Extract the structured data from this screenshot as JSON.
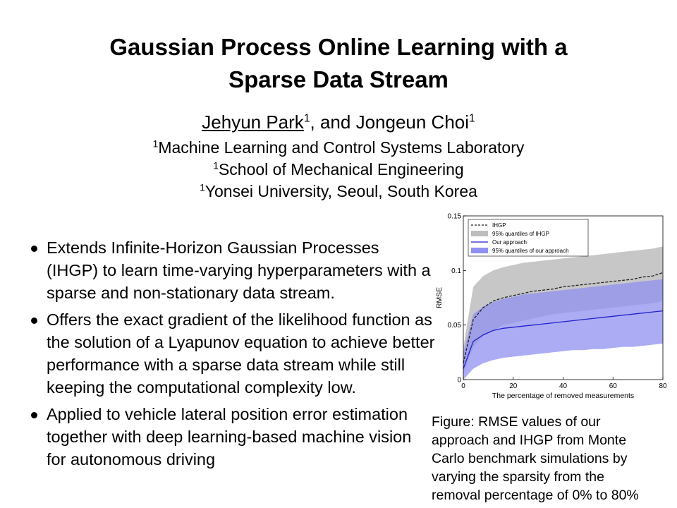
{
  "title": {
    "line1": "Gaussian Process Online Learning with a",
    "line2": "Sparse Data Stream"
  },
  "authors": {
    "author1": "Jehyun Park",
    "author1_sup": "1",
    "separator": ", and ",
    "author2": "Jongeun Choi",
    "author2_sup": "1"
  },
  "affiliations": [
    {
      "sup": "1",
      "text": "Machine Learning and Control Systems Laboratory"
    },
    {
      "sup": "1",
      "text": "School of Mechanical Engineering"
    },
    {
      "sup": "1",
      "text": "Yonsei University, Seoul, South Korea"
    }
  ],
  "bullets": [
    "Extends Infinite-Horizon Gaussian Processes (IHGP)  to learn time-varying hyperparameters with a sparse and non-stationary data stream.",
    "Offers the exact gradient of the likelihood function as the solution of a Lyapunov equation to achieve better performance with a sparse data stream while still keeping the computational complexity low.",
    "Applied to vehicle lateral position error estimation together with deep learning-based machine vision for autonomous driving"
  ],
  "caption_lines": [
    "Figure: RMSE values of our",
    "approach and IHGP from Monte",
    "Carlo benchmark simulations by",
    "varying the sparsity from the",
    "removal percentage of 0% to 80%"
  ],
  "chart_data": {
    "type": "line",
    "xlabel": "The percentage of removed measurements",
    "ylabel": "RMSE",
    "xlim": [
      0,
      80
    ],
    "ylim": [
      0,
      0.15
    ],
    "xticks": [
      "0",
      "20",
      "40",
      "60",
      "80"
    ],
    "yticks": [
      "0",
      "0.05",
      "0.1",
      "0.15"
    ],
    "grid": false,
    "legend_position": "top-left",
    "legend": [
      "IHGP",
      "95% quantiles of IHGP",
      "Our approach",
      "95% quantiles of our approach"
    ],
    "colors": {
      "ihgp": "#222222",
      "ihgp_band": "#bdbdbd",
      "ours": "#2222cc",
      "ours_band": "#9090f0"
    },
    "x": [
      0,
      4,
      8,
      12,
      16,
      20,
      24,
      28,
      32,
      36,
      40,
      44,
      48,
      52,
      56,
      60,
      64,
      68,
      72,
      76,
      80
    ],
    "series": [
      {
        "name": "IHGP",
        "values": [
          0.015,
          0.055,
          0.066,
          0.072,
          0.075,
          0.077,
          0.079,
          0.081,
          0.082,
          0.083,
          0.085,
          0.086,
          0.087,
          0.088,
          0.089,
          0.09,
          0.091,
          0.092,
          0.094,
          0.095,
          0.098
        ]
      },
      {
        "name": "Our approach",
        "values": [
          0.01,
          0.035,
          0.041,
          0.045,
          0.047,
          0.048,
          0.049,
          0.05,
          0.051,
          0.052,
          0.053,
          0.054,
          0.055,
          0.056,
          0.057,
          0.058,
          0.059,
          0.06,
          0.061,
          0.062,
          0.063
        ]
      }
    ],
    "bands": [
      {
        "name": "95% quantiles of IHGP",
        "lower": [
          0.005,
          0.03,
          0.04,
          0.045,
          0.05,
          0.052,
          0.054,
          0.056,
          0.058,
          0.06,
          0.061,
          0.062,
          0.063,
          0.064,
          0.065,
          0.066,
          0.067,
          0.068,
          0.069,
          0.07,
          0.072
        ],
        "upper": [
          0.03,
          0.085,
          0.095,
          0.1,
          0.103,
          0.105,
          0.107,
          0.108,
          0.109,
          0.11,
          0.111,
          0.112,
          0.113,
          0.114,
          0.115,
          0.116,
          0.117,
          0.118,
          0.119,
          0.12,
          0.122
        ]
      },
      {
        "name": "95% quantiles of our approach",
        "lower": [
          0.0,
          0.01,
          0.015,
          0.018,
          0.02,
          0.021,
          0.022,
          0.023,
          0.024,
          0.025,
          0.026,
          0.027,
          0.027,
          0.028,
          0.028,
          0.029,
          0.03,
          0.03,
          0.031,
          0.032,
          0.033
        ],
        "upper": [
          0.025,
          0.06,
          0.067,
          0.071,
          0.074,
          0.076,
          0.078,
          0.079,
          0.08,
          0.081,
          0.082,
          0.083,
          0.084,
          0.085,
          0.086,
          0.087,
          0.088,
          0.089,
          0.09,
          0.091,
          0.092
        ]
      }
    ]
  }
}
